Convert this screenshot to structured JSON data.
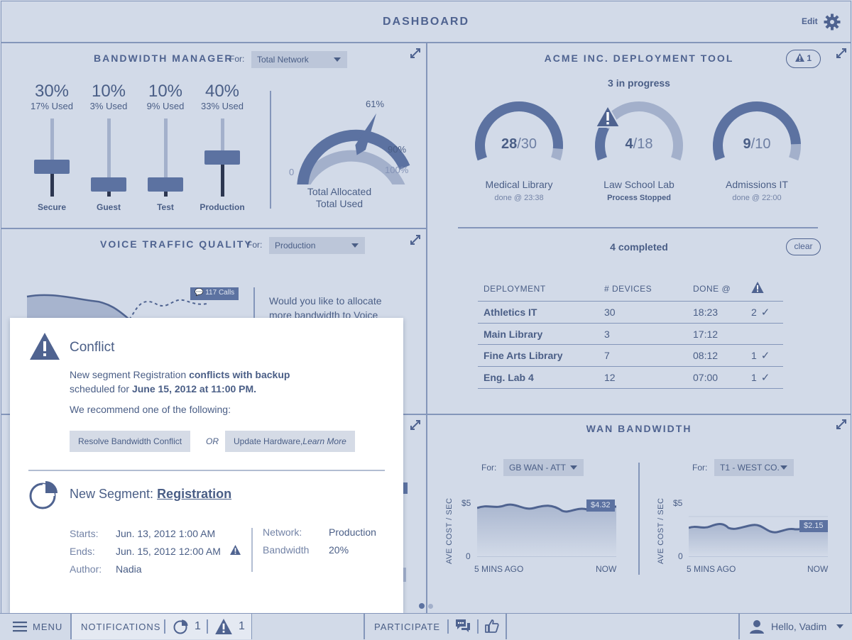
{
  "header": {
    "title": "DASHBOARD",
    "edit_label": "Edit"
  },
  "bandwidth": {
    "title": "BANDWIDTH MANAGER",
    "for_label": "For:",
    "selected": "Total Network",
    "sliders": [
      {
        "pct": "30%",
        "used": "17% Used",
        "label": "Secure",
        "level": 0.3
      },
      {
        "pct": "10%",
        "used": "3% Used",
        "label": "Guest",
        "level": 0.1
      },
      {
        "pct": "10%",
        "used": "9% Used",
        "label": "Test",
        "level": 0.1
      },
      {
        "pct": "40%",
        "used": "33% Used",
        "label": "Production",
        "level": 0.4
      }
    ],
    "gauge": {
      "value_label": "61%",
      "warn_label": "90%",
      "max_label": "100%",
      "min_label": "0",
      "caption1": "Total Allocated",
      "caption2": "Total Used",
      "value": 61
    }
  },
  "deployment": {
    "title": "ACME INC. DEPLOYMENT TOOL",
    "alert_count": "1",
    "in_progress": "3 in progress",
    "gauges": [
      {
        "done": "28",
        "total": "/30",
        "name": "Medical Library",
        "sub": "done @ 23:38",
        "fraction": 0.93
      },
      {
        "done": "4",
        "total": "/18",
        "name": "Law School Lab",
        "sub": "Process Stopped",
        "fraction": 0.22
      },
      {
        "done": "9",
        "total": "/10",
        "name": "Admissions IT",
        "sub": "done @ 22:00",
        "fraction": 0.9
      }
    ],
    "completed": "4 completed",
    "clear_label": "clear",
    "table": {
      "headers": [
        "DEPLOYMENT",
        "# DEVICES",
        "DONE @"
      ],
      "rows": [
        {
          "name": "Athletics IT",
          "devices": "30",
          "done": "18:23",
          "alerts": "2"
        },
        {
          "name": "Main Library",
          "devices": "3",
          "done": "17:12",
          "alerts": ""
        },
        {
          "name": "Fine Arts Library",
          "devices": "7",
          "done": "08:12",
          "alerts": "1"
        },
        {
          "name": "Eng. Lab 4",
          "devices": "12",
          "done": "07:00",
          "alerts": "1"
        }
      ]
    }
  },
  "voice": {
    "title": "VOICE TRAFFIC QUALITY",
    "for_label": "For:",
    "selected": "Production",
    "calls_badge": "117 Calls",
    "prompt_line1": "Would you like to allocate",
    "prompt_line2": "more bandwidth to Voice"
  },
  "wan": {
    "title": "WAN BANDWIDTH",
    "charts": [
      {
        "for_label": "For:",
        "selected": "GB WAN - ATT",
        "ylabel": "AVE COST / SEC",
        "ymax": "$5",
        "ymin": "0",
        "xstart": "5 MINS AGO",
        "xend": "NOW",
        "value_badge": "$4.32"
      },
      {
        "for_label": "For:",
        "selected": "T1 - WEST CO.",
        "ylabel": "AVE COST / SEC",
        "ymax": "$5",
        "ymin": "0",
        "xstart": "5 MINS AGO",
        "xend": "NOW",
        "value_badge": "$2.15"
      }
    ]
  },
  "popup": {
    "title": "Conflict",
    "line1_pre": "New segment Registration ",
    "line1_bold": "conflicts with backup",
    "line2_pre": "scheduled for ",
    "line2_bold": "June 15, 2012 at 11:00 PM.",
    "recommend": "We recommend one of the following:",
    "btn1": "Resolve Bandwidth Conflict",
    "or": "OR",
    "btn2_pre": "Update Hardware, ",
    "btn2_em": "Learn More",
    "segment_label": "New Segment: ",
    "segment_link": "Registration",
    "starts_label": "Starts:",
    "starts_value": "Jun. 13, 2012 1:00 AM",
    "ends_label": "Ends:",
    "ends_value": "Jun. 15, 2012 12:00 AM",
    "author_label": "Author:",
    "author_value": "Nadia",
    "network_label": "Network:",
    "network_value": "Production",
    "bandwidth_label": "Bandwidth",
    "bandwidth_value": "20%"
  },
  "bottom": {
    "menu": "MENU",
    "notifications": "NOTIFICATIONS",
    "segments_count": "1",
    "alerts_count": "1",
    "participate": "PARTICIPATE",
    "greeting": "Hello, Vadim"
  },
  "colors": {
    "background": "#d2dae8",
    "accent": "#5c72a1",
    "text": "#4a5e86"
  }
}
